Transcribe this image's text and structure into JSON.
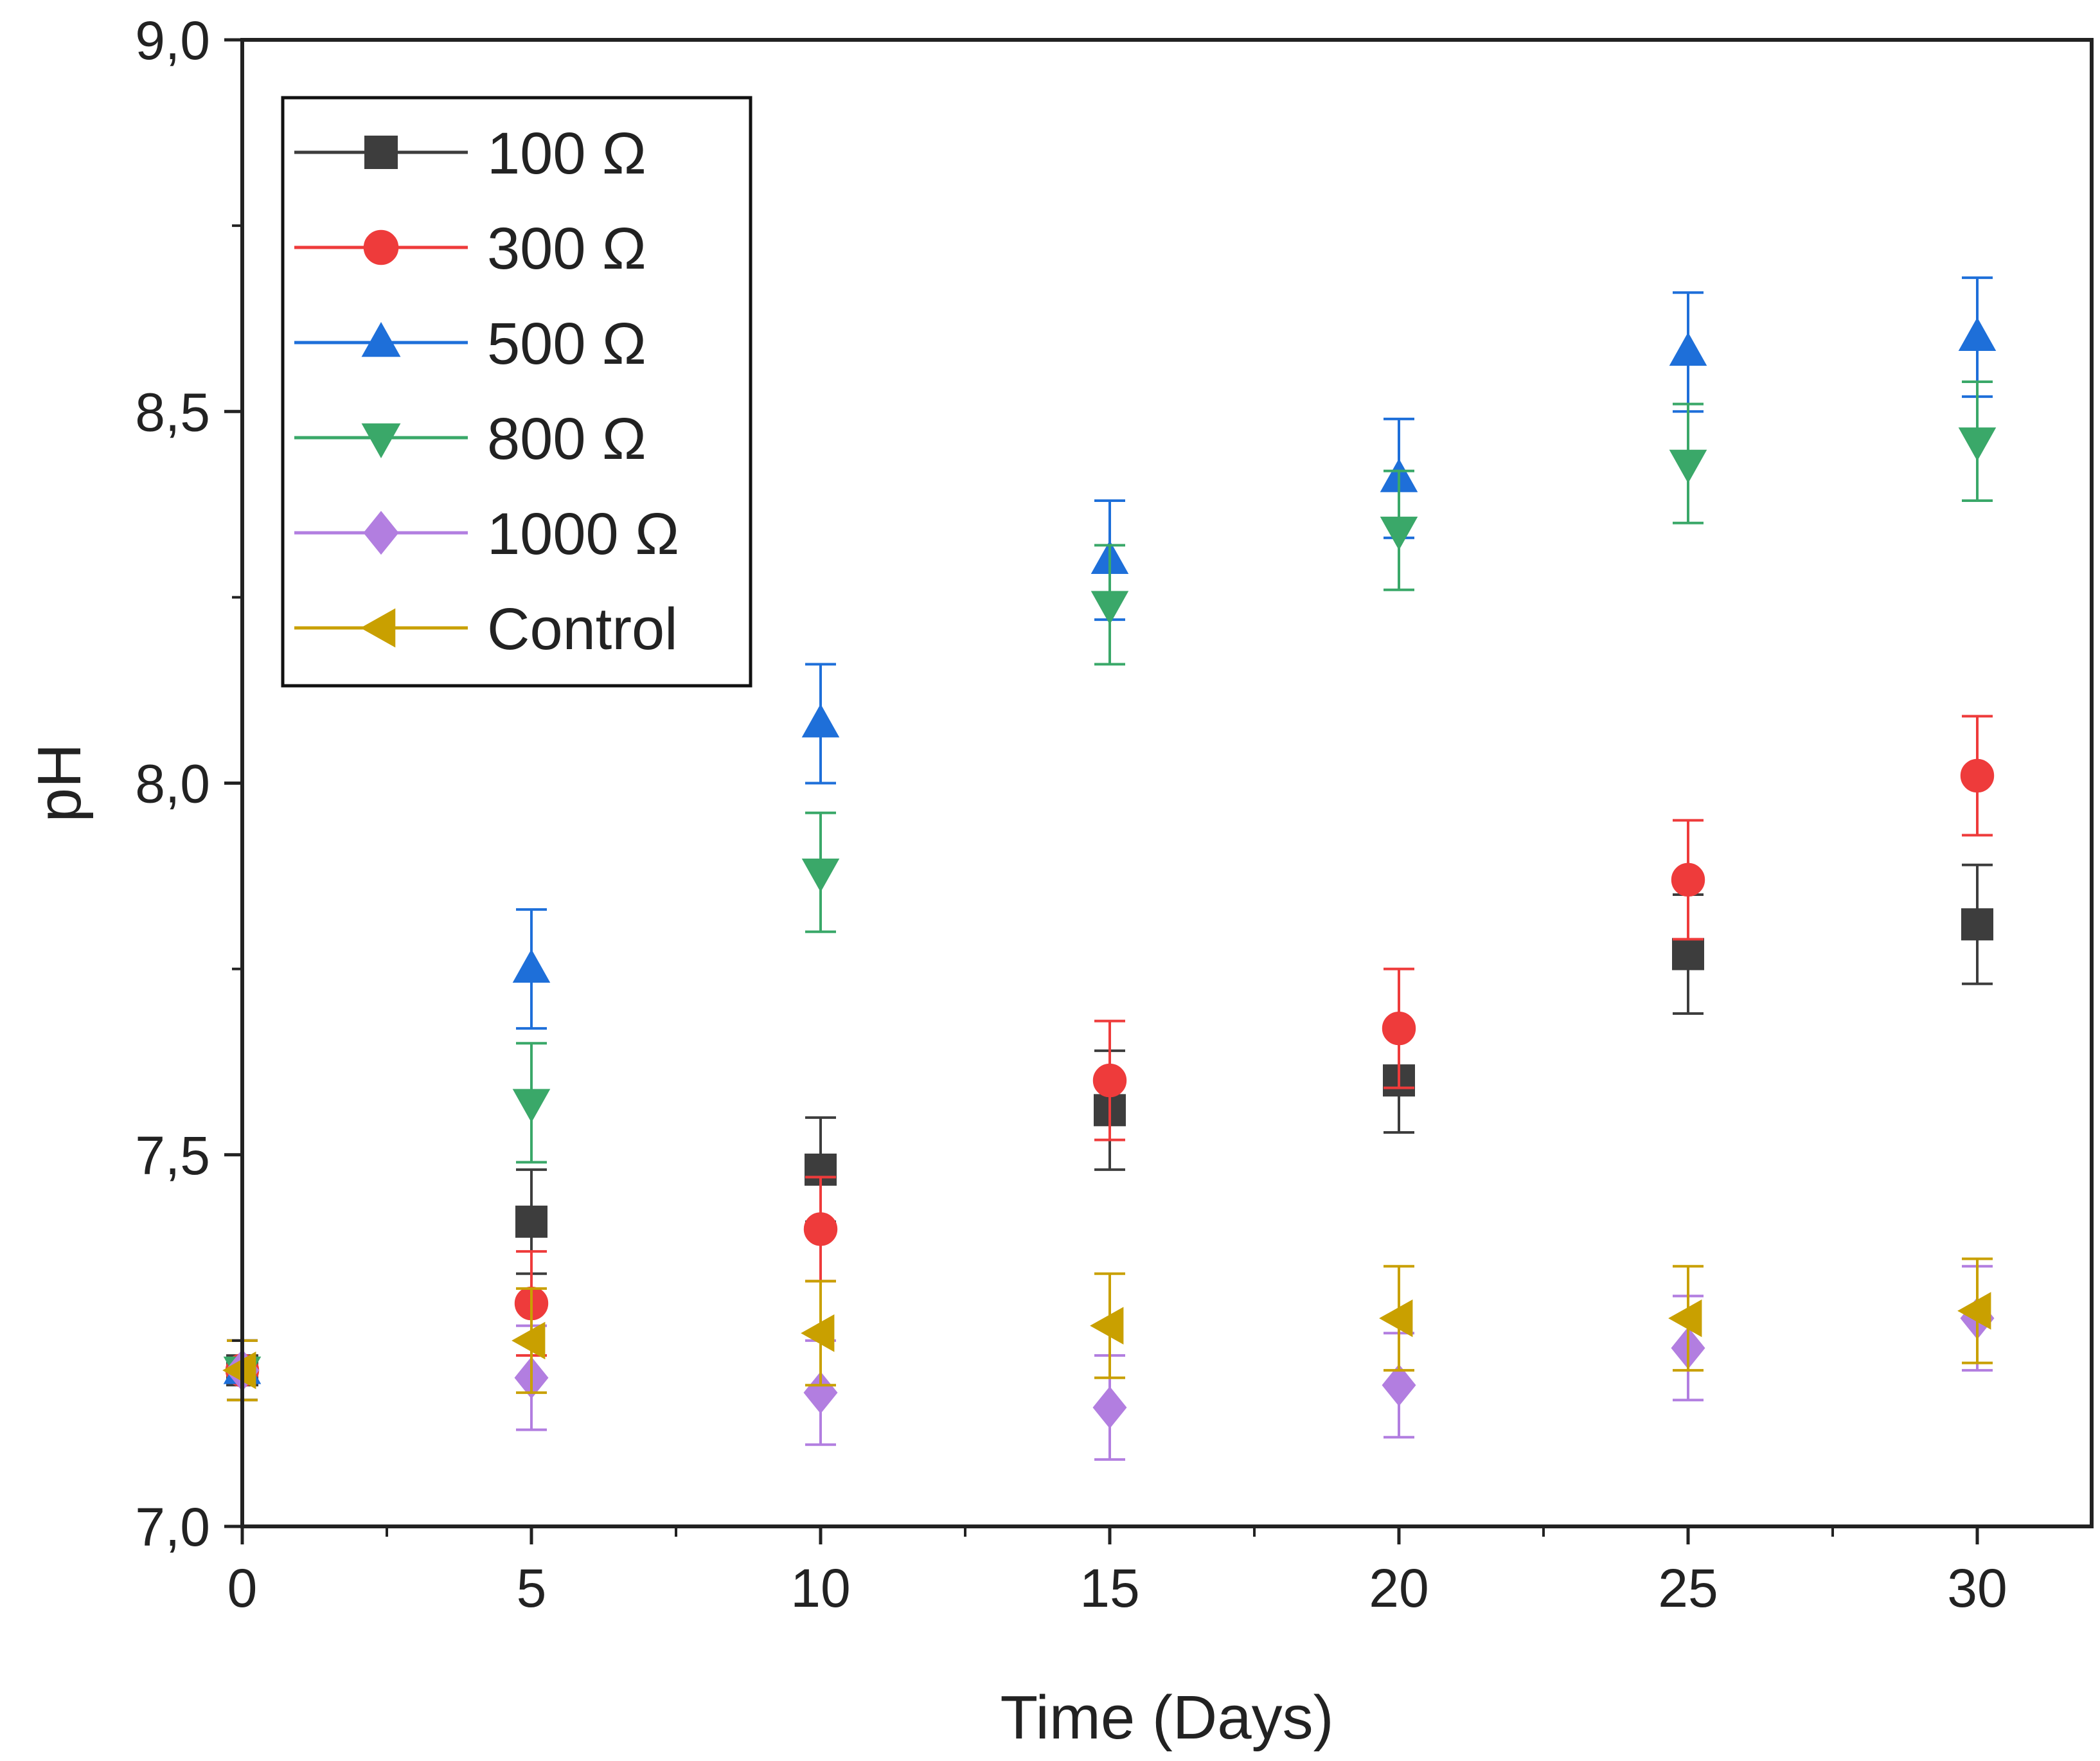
{
  "chart_data": {
    "type": "scatter",
    "title": "",
    "xlabel": "Time (Days)",
    "ylabel": "pH",
    "xlim": [
      0,
      32
    ],
    "ylim": [
      7.0,
      9.0
    ],
    "x_ticks": [
      0,
      5,
      10,
      15,
      20,
      25,
      30
    ],
    "x_tick_labels": [
      "0",
      "5",
      "10",
      "15",
      "20",
      "25",
      "30"
    ],
    "y_ticks": [
      7.0,
      7.5,
      8.0,
      8.5,
      9.0
    ],
    "y_tick_labels": [
      "7,0",
      "7,5",
      "8,0",
      "8,5",
      "9,0"
    ],
    "grid": false,
    "legend_position": "top-left",
    "x": [
      0,
      5,
      10,
      15,
      20,
      25,
      30
    ],
    "series": [
      {
        "name": "100 Ω",
        "marker": "square",
        "color": "#3d3d3d",
        "values": [
          7.21,
          7.41,
          7.48,
          7.56,
          7.6,
          7.77,
          7.81
        ],
        "errors": [
          0.04,
          0.07,
          0.07,
          0.08,
          0.07,
          0.08,
          0.08
        ]
      },
      {
        "name": "300 Ω",
        "marker": "circle",
        "color": "#ee3b3b",
        "values": [
          7.21,
          7.3,
          7.4,
          7.6,
          7.67,
          7.87,
          8.01
        ],
        "errors": [
          0.04,
          0.07,
          0.07,
          0.08,
          0.08,
          0.08,
          0.08
        ]
      },
      {
        "name": "500 Ω",
        "marker": "triangle-up",
        "color": "#1e6fd9",
        "values": [
          7.21,
          7.75,
          8.08,
          8.3,
          8.41,
          8.58,
          8.6
        ],
        "errors": [
          0.04,
          0.08,
          0.08,
          0.08,
          0.08,
          0.08,
          0.08
        ]
      },
      {
        "name": "800 Ω",
        "marker": "triangle-down",
        "color": "#3aa869",
        "values": [
          7.21,
          7.57,
          7.88,
          8.24,
          8.34,
          8.43,
          8.46
        ],
        "errors": [
          0.04,
          0.08,
          0.08,
          0.08,
          0.08,
          0.08,
          0.08
        ]
      },
      {
        "name": "1000 Ω",
        "marker": "diamond",
        "color": "#b27ee0",
        "values": [
          7.21,
          7.2,
          7.18,
          7.16,
          7.19,
          7.24,
          7.28
        ],
        "errors": [
          0.04,
          0.07,
          0.07,
          0.07,
          0.07,
          0.07,
          0.07
        ]
      },
      {
        "name": "Control",
        "marker": "triangle-left",
        "color": "#c9a000",
        "values": [
          7.21,
          7.25,
          7.26,
          7.27,
          7.28,
          7.28,
          7.29
        ],
        "errors": [
          0.04,
          0.07,
          0.07,
          0.07,
          0.07,
          0.07,
          0.07
        ]
      }
    ]
  }
}
